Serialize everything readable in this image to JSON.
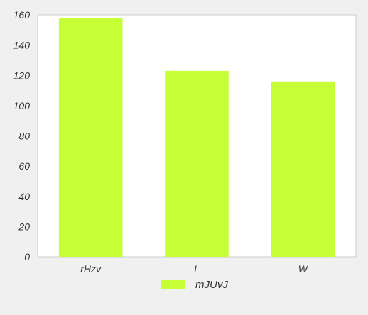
{
  "chart_data": {
    "type": "bar",
    "categories": [
      "rHzv",
      "L",
      "W"
    ],
    "series": [
      {
        "name": "mJUvJ",
        "values": [
          158,
          123,
          116
        ],
        "color": "#c6ff35"
      }
    ],
    "ylim": [
      0,
      160
    ],
    "yticks": [
      0,
      20,
      40,
      60,
      80,
      100,
      120,
      140,
      160
    ],
    "grid": false,
    "legend_position": "bottom-center",
    "plot_background": "#ffffff",
    "page_background": "#f0f0f0"
  }
}
